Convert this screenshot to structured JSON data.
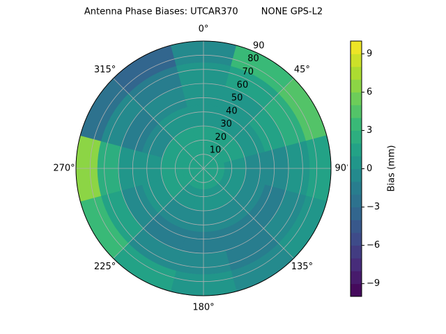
{
  "chart_data": {
    "type": "polar_contour",
    "title": "Antenna Phase Biases: UTCAR370        NONE GPS-L2",
    "azimuths": [
      0,
      30,
      60,
      90,
      120,
      150,
      180,
      210,
      240,
      270,
      300,
      330
    ],
    "zenith_edges": [
      0,
      15,
      30,
      45,
      60,
      75,
      90
    ],
    "values": [
      [
        1,
        1,
        1,
        1,
        1,
        1,
        1,
        1,
        1,
        1,
        1,
        1
      ],
      [
        1,
        1,
        1,
        0,
        0,
        0,
        0,
        0,
        1,
        1,
        1,
        1
      ],
      [
        0,
        0,
        0,
        -1,
        -1,
        -1,
        -1,
        -1,
        0,
        0,
        -1,
        0
      ],
      [
        0,
        0,
        1,
        -1,
        -2,
        -2,
        -2,
        -2,
        -1,
        0,
        -2,
        -1
      ],
      [
        0,
        1,
        2,
        0,
        -1,
        -2,
        -1,
        -1,
        1,
        2,
        -1,
        -2
      ],
      [
        -1,
        3,
        4,
        1,
        0,
        -1,
        0,
        1,
        3,
        6,
        -3,
        -4
      ]
    ],
    "rlim": [
      0,
      90
    ],
    "rticks": [
      10,
      20,
      30,
      40,
      50,
      60,
      70,
      80,
      90
    ],
    "thetaticks": [
      {
        "value": 0,
        "label": "0°"
      },
      {
        "value": 45,
        "label": "45°"
      },
      {
        "value": 90,
        "label": "90°"
      },
      {
        "value": 135,
        "label": "135°"
      },
      {
        "value": 180,
        "label": "180°"
      },
      {
        "value": 225,
        "label": "225°"
      },
      {
        "value": 270,
        "label": "270°"
      },
      {
        "value": 315,
        "label": "315°"
      }
    ],
    "clim": [
      -10,
      10
    ],
    "level_step": 1,
    "cticks": [
      {
        "value": -9,
        "label": "−9"
      },
      {
        "value": -6,
        "label": "−6"
      },
      {
        "value": -3,
        "label": "−3"
      },
      0,
      3,
      6,
      9
    ],
    "colorbar_label": "Bias (mm)",
    "colormap": "viridis",
    "grid": true
  }
}
